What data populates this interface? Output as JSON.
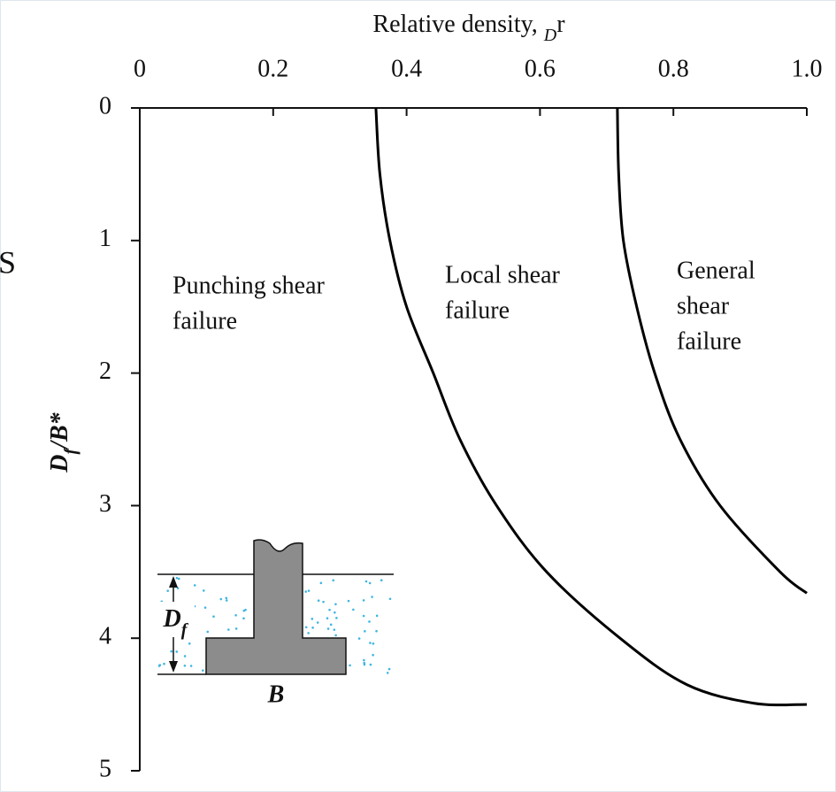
{
  "margin_text": "S",
  "chart_data": {
    "type": "line",
    "xlabel": [
      "Relative density, ",
      "D",
      "r"
    ],
    "ylabel": [
      "D",
      "f",
      "/B*"
    ],
    "xlim": [
      0,
      1
    ],
    "ylim": [
      0,
      5
    ],
    "y_inverted": true,
    "xticks": [
      0,
      0.2,
      0.4,
      0.6,
      0.8,
      {
        "value": 1,
        "label": "1.0"
      }
    ],
    "yticks": [
      0,
      1,
      2,
      3,
      4,
      5
    ],
    "series": [
      {
        "color": "#000000",
        "x": [
          0.354,
          0.36,
          0.375,
          0.4,
          0.44,
          0.48,
          0.535,
          0.61,
          0.72,
          0.82,
          0.92,
          1.0
        ],
        "values": [
          0,
          0.5,
          1.0,
          1.5,
          2.0,
          2.5,
          3.0,
          3.5,
          4.0,
          4.35,
          4.49,
          4.5
        ]
      },
      {
        "color": "#000000",
        "x": [
          0.716,
          0.718,
          0.725,
          0.745,
          0.772,
          0.81,
          0.87,
          0.96,
          1.0
        ],
        "values": [
          0,
          0.5,
          1.0,
          1.5,
          2.0,
          2.5,
          3.0,
          3.5,
          3.66
        ]
      }
    ],
    "annotations": [
      {
        "lines": [
          "Punching shear",
          "failure"
        ]
      },
      {
        "lines": [
          "Local shear",
          "failure"
        ]
      },
      {
        "lines": [
          "General",
          "shear",
          "failure"
        ]
      }
    ],
    "inset": {
      "depth_label": [
        "D",
        "f"
      ],
      "width_label": "B"
    }
  }
}
